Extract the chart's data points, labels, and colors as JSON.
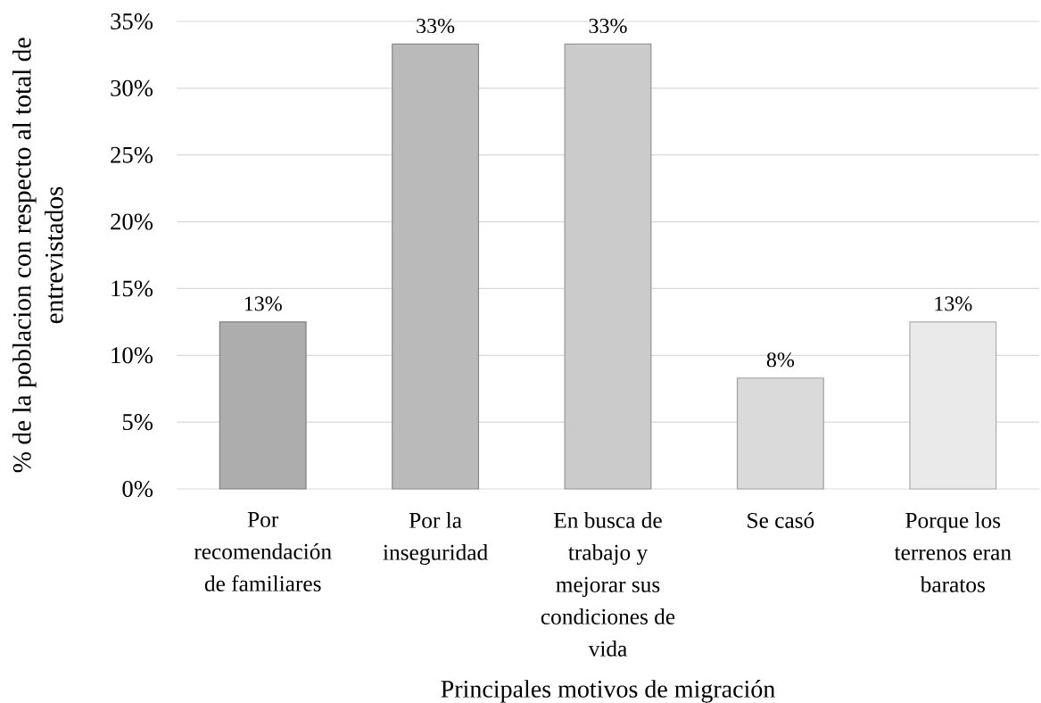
{
  "chart_data": {
    "type": "bar",
    "xlabel": "Principales motivos de migración",
    "ylabel": "% de la poblacion con respecto al total de entrevistados",
    "categories": [
      "Por recomendación de familiares",
      "Por la inseguridad",
      "En busca de trabajo y mejorar sus condiciones de vida",
      "Se casó",
      "Porque los terrenos eran baratos"
    ],
    "values": [
      12.5,
      33.3,
      33.3,
      8.3,
      12.5
    ],
    "colors": [
      "#adadad",
      "#bababa",
      "#cbcbcb",
      "#dadada",
      "#eaeaea"
    ],
    "value_labels": [
      "13%",
      "33%",
      "33%",
      "8%",
      "13%"
    ],
    "ylim": [
      0,
      35
    ],
    "yticks": [
      {
        "value": 0,
        "label": "0%"
      },
      {
        "value": 5,
        "label": "5%"
      },
      {
        "value": 10,
        "label": "10%"
      },
      {
        "value": 15,
        "label": "15%"
      },
      {
        "value": 20,
        "label": "20%"
      },
      {
        "value": 25,
        "label": "25%"
      },
      {
        "value": 30,
        "label": "30%"
      },
      {
        "value": 35,
        "label": "35%"
      }
    ],
    "grid": "y"
  }
}
